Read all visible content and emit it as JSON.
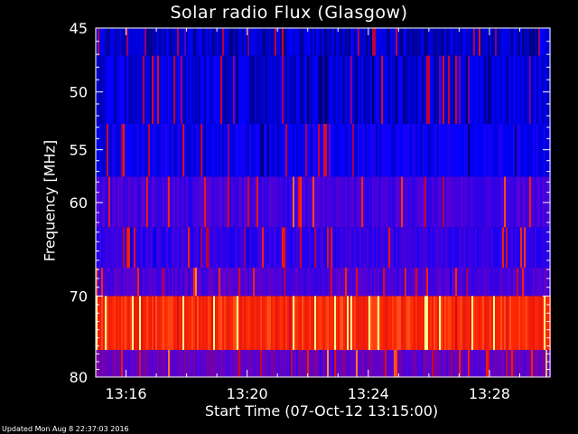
{
  "chart_data": {
    "type": "heatmap",
    "title": "Solar radio Flux (Glasgow)",
    "xlabel": "Start Time (07-Oct-12 13:15:00)",
    "ylabel": "Frequency [MHz]",
    "x_ticks": [
      "13:16",
      "13:20",
      "13:24",
      "13:28"
    ],
    "x_tick_minutes": [
      1,
      5,
      9,
      13
    ],
    "xlim_minutes": [
      0,
      15
    ],
    "y_ticks": [
      45,
      50,
      55,
      60,
      70,
      80
    ],
    "ylim": [
      45,
      80
    ],
    "y_scale": "log",
    "bands": [
      {
        "from": 45,
        "to": 47.1,
        "intensity": 0.1
      },
      {
        "from": 47.1,
        "to": 52.7,
        "intensity": 0.12
      },
      {
        "from": 52.7,
        "to": 57.5,
        "intensity": 0.16
      },
      {
        "from": 57.5,
        "to": 62.5,
        "intensity": 0.3
      },
      {
        "from": 62.5,
        "to": 66.8,
        "intensity": 0.25
      },
      {
        "from": 66.8,
        "to": 70.0,
        "intensity": 0.32
      },
      {
        "from": 70.0,
        "to": 76.5,
        "intensity": 0.78
      },
      {
        "from": 76.5,
        "to": 80,
        "intensity": 0.38
      }
    ],
    "colormap": [
      "#000000",
      "#0000ff",
      "#ff0000",
      "#ffff80"
    ]
  },
  "footer": "Updated Mon Aug  8 22:37:03 2016"
}
